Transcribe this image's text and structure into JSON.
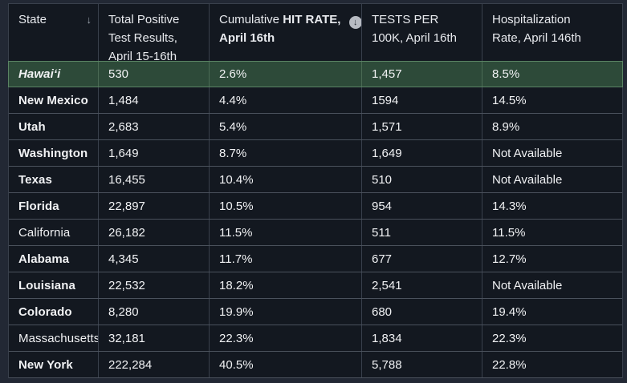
{
  "table": {
    "columns": [
      {
        "id": "state",
        "label": "State",
        "sort_icon": "down-arrow"
      },
      {
        "id": "total_positive",
        "line1": "Total Positive",
        "line2": "Test Results,",
        "line3": "April 15-16th"
      },
      {
        "id": "cumulative_hit_rate",
        "prefix": "Cumulative",
        "bold_part": "HIT RATE,",
        "bold_line2": "April 16th",
        "icon": "circle-down-arrow"
      },
      {
        "id": "tests_per_100k",
        "line1": "TESTS PER",
        "line2": "100K, April 16th"
      },
      {
        "id": "hospitalization_rate",
        "line1": "Hospitalization",
        "line2": "Rate, April 146th"
      }
    ],
    "rows": [
      {
        "state": "Hawaiʻi",
        "total_positive": "530",
        "cumulative_hit_rate": "2.6%",
        "tests_per_100k": "1,457",
        "hospitalization_rate": "8.5%",
        "highlighted": true,
        "italic": true,
        "bold": true
      },
      {
        "state": "New Mexico",
        "total_positive": "1,484",
        "cumulative_hit_rate": "4.4%",
        "tests_per_100k": "1594",
        "hospitalization_rate": "14.5%",
        "bold": true
      },
      {
        "state": "Utah",
        "total_positive": "2,683",
        "cumulative_hit_rate": "5.4%",
        "tests_per_100k": "1,571",
        "hospitalization_rate": "8.9%",
        "bold": true
      },
      {
        "state": "Washington",
        "total_positive": "1,649",
        "cumulative_hit_rate": "8.7%",
        "tests_per_100k": "1,649",
        "hospitalization_rate": "Not Available",
        "bold": true
      },
      {
        "state": "Texas",
        "total_positive": "16,455",
        "cumulative_hit_rate": "10.4%",
        "tests_per_100k": "510",
        "hospitalization_rate": "Not Available",
        "bold": true
      },
      {
        "state": "Florida",
        "total_positive": "22,897",
        "cumulative_hit_rate": "10.5%",
        "tests_per_100k": "954",
        "hospitalization_rate": "14.3%",
        "bold": true
      },
      {
        "state": "California",
        "total_positive": "26,182",
        "cumulative_hit_rate": "11.5%",
        "tests_per_100k": "511",
        "hospitalization_rate": "11.5%",
        "bold": false
      },
      {
        "state": "Alabama",
        "total_positive": "4,345",
        "cumulative_hit_rate": "11.7%",
        "tests_per_100k": "677",
        "hospitalization_rate": "12.7%",
        "bold": true
      },
      {
        "state": "Louisiana",
        "total_positive": "22,532",
        "cumulative_hit_rate": "18.2%",
        "tests_per_100k": "2,541",
        "hospitalization_rate": "Not Available",
        "bold": true
      },
      {
        "state": "Colorado",
        "total_positive": "8,280",
        "cumulative_hit_rate": "19.9%",
        "tests_per_100k": "680",
        "hospitalization_rate": "19.4%",
        "bold": true
      },
      {
        "state": "Massachusetts",
        "total_positive": "32,181",
        "cumulative_hit_rate": "22.3%",
        "tests_per_100k": "1,834",
        "hospitalization_rate": "22.3%",
        "bold": false
      },
      {
        "state": "New York",
        "total_positive": "222,284",
        "cumulative_hit_rate": "40.5%",
        "tests_per_100k": "5,788",
        "hospitalization_rate": "22.8%",
        "bold": true
      }
    ]
  },
  "icons": {
    "state_sort_glyph": "↓",
    "hit_rate_badge_glyph": "↓"
  },
  "colors": {
    "page_bg": "#222834",
    "cell_bg": "#131820",
    "header_text": "#e8eaee",
    "cell_text": "#f1f2f4",
    "row_divider": "#4a515c",
    "col_divider": "#39404c",
    "highlight_bg": "#2d4a39",
    "highlight_border": "#5a8464",
    "highlight_divider": "#4a6a54",
    "muted_icon": "#9aa1ab",
    "badge_bg": "#b6bac1",
    "badge_glyph": "#272d37"
  }
}
